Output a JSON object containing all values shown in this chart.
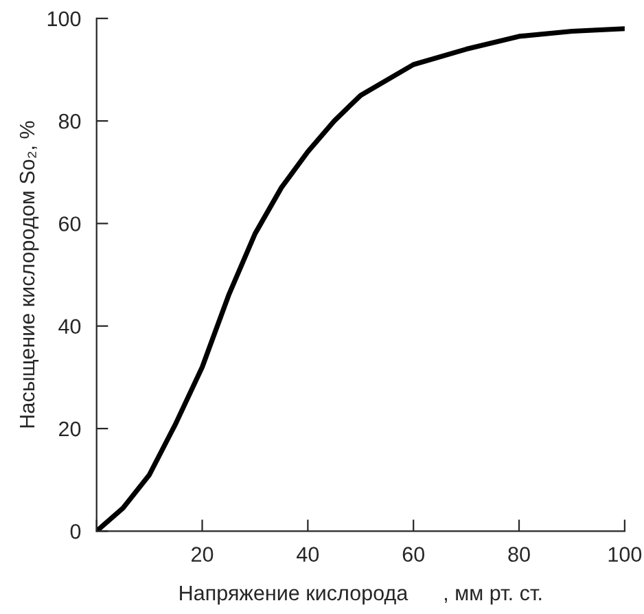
{
  "chart_data": {
    "type": "line",
    "xlabel": "Напряжение кислорода      , мм рт. ст.",
    "ylabel": "Насыщение кислородом So₂, %",
    "x": [
      0,
      5,
      10,
      15,
      20,
      25,
      30,
      35,
      40,
      45,
      50,
      60,
      70,
      80,
      90,
      100
    ],
    "series": [
      {
        "color": "#000000",
        "values": [
          0,
          4.5,
          11,
          21,
          32,
          46,
          58,
          67,
          74,
          80,
          85,
          91,
          94,
          96.5,
          97.5,
          98
        ]
      }
    ],
    "xlim": [
      0,
      100
    ],
    "ylim": [
      0,
      100
    ],
    "xticks": [
      {
        "value": 0,
        "label": null
      },
      20,
      40,
      60,
      80,
      100
    ],
    "yticks": [
      0,
      20,
      40,
      60,
      80,
      100
    ],
    "grid": false,
    "legend": false,
    "marker": "none",
    "line_style": "solid"
  }
}
